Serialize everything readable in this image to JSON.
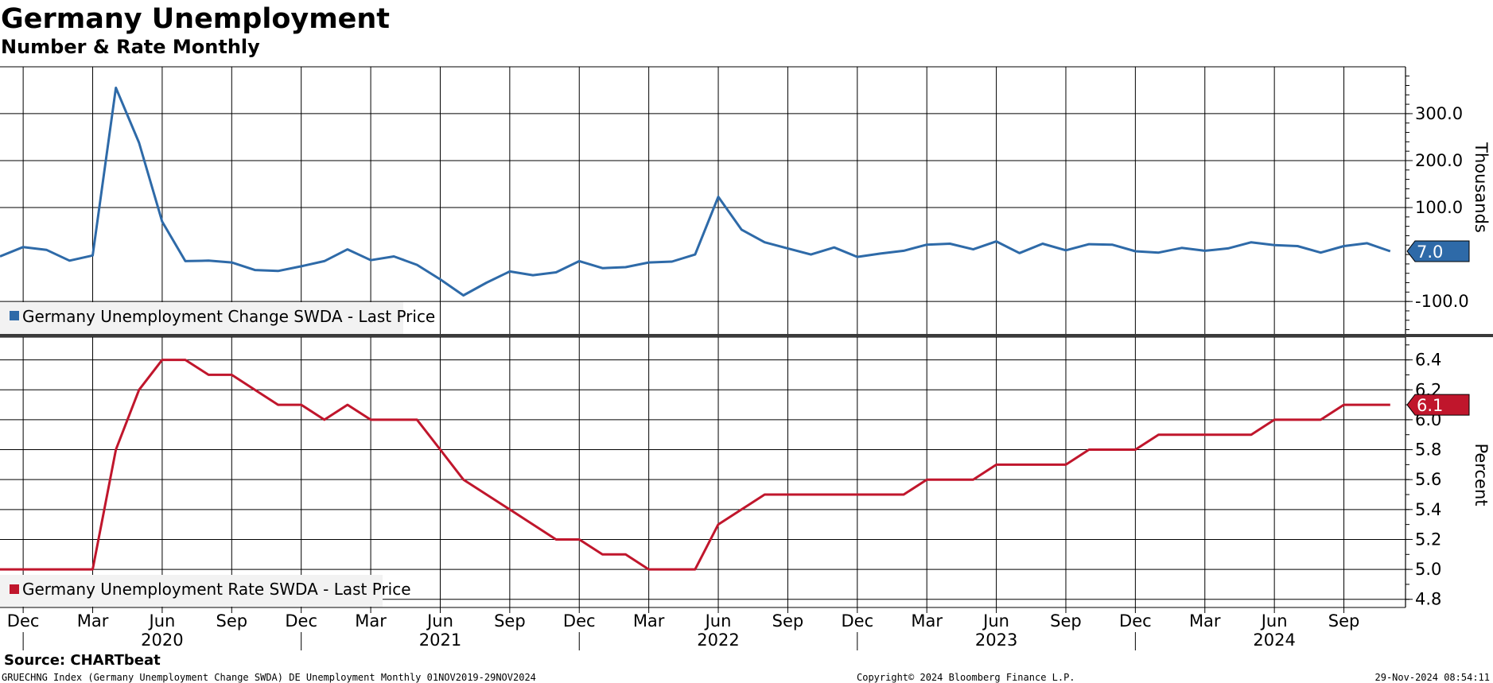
{
  "header": {
    "title": "Germany Unemployment",
    "subtitle": "Number & Rate Monthly"
  },
  "footer": {
    "source": "Source: CHARTbeat",
    "description": "GRUECHNG Index (Germany Unemployment Change SWDA) DE Unemployment  Monthly 01NOV2019-29NOV2024",
    "copyright": "Copyright© 2024 Bloomberg Finance L.P.",
    "timestamp": "29-Nov-2024 08:54:11"
  },
  "colors": {
    "change_series": "#2e6aa8",
    "rate_series": "#c0162c",
    "grid": "#000000",
    "legend_bg": "#f2f2f2"
  },
  "chart_data": [
    {
      "type": "line",
      "title": "",
      "ylabel": "Thousands",
      "ylim": [
        -160,
        400
      ],
      "yticks": [
        -100,
        100,
        200,
        300
      ],
      "ytick_labels": [
        "-100.0",
        "100.0",
        "200.0",
        "300.0"
      ],
      "grid": true,
      "legend_position": "bottom-left",
      "last_value_label": "7.0",
      "series": [
        {
          "name": "Germany Unemployment Change SWDA - Last Price",
          "color": "#2e6aa8",
          "x": [
            "2019-11",
            "2019-12",
            "2020-01",
            "2020-02",
            "2020-03",
            "2020-04",
            "2020-05",
            "2020-06",
            "2020-07",
            "2020-08",
            "2020-09",
            "2020-10",
            "2020-11",
            "2020-12",
            "2021-01",
            "2021-02",
            "2021-03",
            "2021-04",
            "2021-05",
            "2021-06",
            "2021-07",
            "2021-08",
            "2021-09",
            "2021-10",
            "2021-11",
            "2021-12",
            "2022-01",
            "2022-02",
            "2022-03",
            "2022-04",
            "2022-05",
            "2022-06",
            "2022-07",
            "2022-08",
            "2022-09",
            "2022-10",
            "2022-11",
            "2022-12",
            "2023-01",
            "2023-02",
            "2023-03",
            "2023-04",
            "2023-05",
            "2023-06",
            "2023-07",
            "2023-08",
            "2023-09",
            "2023-10",
            "2023-11",
            "2023-12",
            "2024-01",
            "2024-02",
            "2024-03",
            "2024-04",
            "2024-05",
            "2024-06",
            "2024-07",
            "2024-08",
            "2024-09",
            "2024-10",
            "2024-11"
          ],
          "values": [
            -4,
            16,
            10,
            -13,
            -2,
            355,
            238,
            70,
            -14,
            -13,
            -17,
            -33,
            -35,
            -25,
            -14,
            11,
            -12,
            -4,
            -22,
            -53,
            -87,
            -60,
            -36,
            -44,
            -38,
            -14,
            -29,
            -27,
            -17,
            -15,
            0,
            123,
            53,
            26,
            13,
            0,
            15,
            -5,
            2,
            8,
            21,
            23,
            11,
            28,
            3,
            23,
            9,
            22,
            21,
            7,
            4,
            14,
            8,
            13,
            26,
            20,
            18,
            4,
            18,
            24,
            7
          ]
        }
      ]
    },
    {
      "type": "line",
      "title": "",
      "ylabel": "Percent",
      "ylim": [
        4.77,
        6.5
      ],
      "yticks": [
        4.8,
        5.0,
        5.2,
        5.4,
        5.6,
        5.8,
        6.0,
        6.2,
        6.4
      ],
      "ytick_labels": [
        "4.8",
        "5.0",
        "5.2",
        "5.4",
        "5.6",
        "5.8",
        "6.0",
        "6.2",
        "6.4"
      ],
      "grid": true,
      "legend_position": "bottom-left",
      "last_value_label": "6.1",
      "series": [
        {
          "name": "Germany Unemployment Rate SWDA - Last Price",
          "color": "#c0162c",
          "x": [
            "2019-11",
            "2019-12",
            "2020-01",
            "2020-02",
            "2020-03",
            "2020-04",
            "2020-05",
            "2020-06",
            "2020-07",
            "2020-08",
            "2020-09",
            "2020-10",
            "2020-11",
            "2020-12",
            "2021-01",
            "2021-02",
            "2021-03",
            "2021-04",
            "2021-05",
            "2021-06",
            "2021-07",
            "2021-08",
            "2021-09",
            "2021-10",
            "2021-11",
            "2021-12",
            "2022-01",
            "2022-02",
            "2022-03",
            "2022-04",
            "2022-05",
            "2022-06",
            "2022-07",
            "2022-08",
            "2022-09",
            "2022-10",
            "2022-11",
            "2022-12",
            "2023-01",
            "2023-02",
            "2023-03",
            "2023-04",
            "2023-05",
            "2023-06",
            "2023-07",
            "2023-08",
            "2023-09",
            "2023-10",
            "2023-11",
            "2023-12",
            "2024-01",
            "2024-02",
            "2024-03",
            "2024-04",
            "2024-05",
            "2024-06",
            "2024-07",
            "2024-08",
            "2024-09",
            "2024-10",
            "2024-11"
          ],
          "values": [
            5.0,
            5.0,
            5.0,
            5.0,
            5.0,
            5.8,
            6.2,
            6.4,
            6.4,
            6.3,
            6.3,
            6.2,
            6.1,
            6.1,
            6.0,
            6.1,
            6.0,
            6.0,
            6.0,
            5.8,
            5.6,
            5.5,
            5.4,
            5.3,
            5.2,
            5.2,
            5.1,
            5.1,
            5.0,
            5.0,
            5.0,
            5.3,
            5.4,
            5.5,
            5.5,
            5.5,
            5.5,
            5.5,
            5.5,
            5.5,
            5.6,
            5.6,
            5.6,
            5.7,
            5.7,
            5.7,
            5.7,
            5.8,
            5.8,
            5.8,
            5.9,
            5.9,
            5.9,
            5.9,
            5.9,
            6.0,
            6.0,
            6.0,
            6.1,
            6.1,
            6.1
          ]
        }
      ]
    }
  ],
  "x_axis": {
    "month_labels": [
      "Dec",
      "Mar",
      "Jun",
      "Sep",
      "Dec",
      "Mar",
      "Jun",
      "Sep",
      "Dec",
      "Mar",
      "Jun",
      "Sep",
      "Dec",
      "Mar",
      "Jun",
      "Sep",
      "Dec",
      "Mar",
      "Jun",
      "Sep"
    ],
    "month_positions": [
      "2019-12",
      "2020-03",
      "2020-06",
      "2020-09",
      "2020-12",
      "2021-03",
      "2021-06",
      "2021-09",
      "2021-12",
      "2022-03",
      "2022-06",
      "2022-09",
      "2022-12",
      "2023-03",
      "2023-06",
      "2023-09",
      "2023-12",
      "2024-03",
      "2024-06",
      "2024-09"
    ],
    "year_labels": [
      "2020",
      "2021",
      "2022",
      "2023",
      "2024"
    ],
    "year_positions": [
      "2020-06",
      "2021-06",
      "2022-06",
      "2023-06",
      "2024-06"
    ]
  }
}
